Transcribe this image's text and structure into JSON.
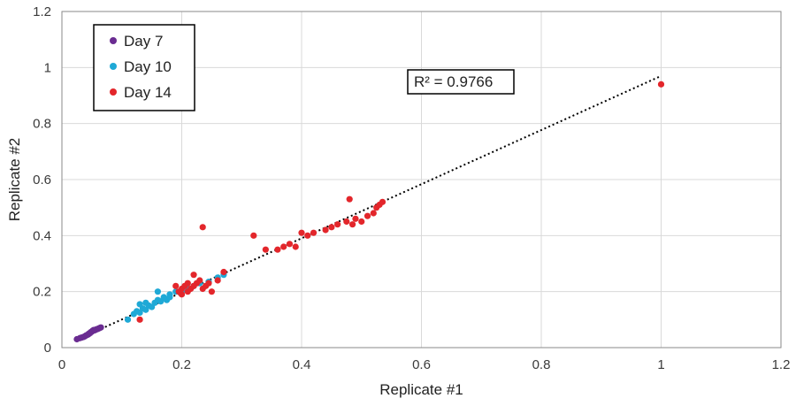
{
  "chart_data": {
    "type": "scatter",
    "xlabel": "Replicate #1",
    "ylabel": "Replicate #2",
    "xlim": [
      0,
      1.2
    ],
    "ylim": [
      0,
      1.2
    ],
    "x_ticks": [
      "0",
      "0.2",
      "0.4",
      "0.6",
      "0.8",
      "1",
      "1.2"
    ],
    "y_ticks": [
      "0",
      "0.2",
      "0.4",
      "0.6",
      "0.8",
      "1",
      "1.2"
    ],
    "grid": true,
    "legend_position": "top-left",
    "annotation": "R² = 0.9766",
    "trendline": {
      "style": "dotted",
      "color": "#000000",
      "x": [
        0.025,
        1.0
      ],
      "y": [
        0.028,
        0.97
      ]
    },
    "series": [
      {
        "name": "Day 7",
        "color": "#6a2c91",
        "x": [
          0.025,
          0.03,
          0.033,
          0.036,
          0.038,
          0.04,
          0.042,
          0.044,
          0.045,
          0.047,
          0.048,
          0.05,
          0.051,
          0.053,
          0.055,
          0.057,
          0.059,
          0.061,
          0.063,
          0.065
        ],
        "y": [
          0.03,
          0.034,
          0.036,
          0.038,
          0.04,
          0.043,
          0.045,
          0.047,
          0.05,
          0.052,
          0.055,
          0.057,
          0.06,
          0.063,
          0.062,
          0.065,
          0.066,
          0.068,
          0.07,
          0.072
        ]
      },
      {
        "name": "Day 10",
        "color": "#1fa9d6",
        "x": [
          0.11,
          0.12,
          0.125,
          0.13,
          0.135,
          0.14,
          0.145,
          0.15,
          0.155,
          0.16,
          0.165,
          0.17,
          0.175,
          0.18,
          0.19,
          0.2,
          0.21,
          0.22,
          0.23,
          0.245,
          0.26,
          0.27,
          0.13,
          0.14,
          0.16,
          0.18
        ],
        "y": [
          0.1,
          0.12,
          0.13,
          0.125,
          0.14,
          0.135,
          0.15,
          0.145,
          0.16,
          0.17,
          0.165,
          0.18,
          0.17,
          0.19,
          0.2,
          0.2,
          0.21,
          0.22,
          0.23,
          0.235,
          0.25,
          0.26,
          0.155,
          0.16,
          0.2,
          0.18
        ]
      },
      {
        "name": "Day 14",
        "color": "#e3262b",
        "x": [
          0.13,
          0.19,
          0.195,
          0.2,
          0.2,
          0.205,
          0.21,
          0.21,
          0.215,
          0.22,
          0.22,
          0.225,
          0.23,
          0.235,
          0.235,
          0.24,
          0.245,
          0.25,
          0.26,
          0.27,
          0.32,
          0.34,
          0.36,
          0.37,
          0.38,
          0.39,
          0.4,
          0.41,
          0.42,
          0.44,
          0.45,
          0.46,
          0.475,
          0.48,
          0.485,
          0.49,
          0.5,
          0.51,
          0.52,
          0.525,
          0.53,
          0.535,
          1.0
        ],
        "y": [
          0.1,
          0.22,
          0.2,
          0.19,
          0.21,
          0.22,
          0.2,
          0.23,
          0.21,
          0.22,
          0.26,
          0.23,
          0.24,
          0.21,
          0.43,
          0.22,
          0.23,
          0.2,
          0.24,
          0.27,
          0.4,
          0.35,
          0.35,
          0.36,
          0.37,
          0.36,
          0.41,
          0.4,
          0.41,
          0.42,
          0.43,
          0.44,
          0.45,
          0.53,
          0.44,
          0.46,
          0.45,
          0.47,
          0.48,
          0.5,
          0.51,
          0.52,
          0.94
        ]
      }
    ]
  }
}
